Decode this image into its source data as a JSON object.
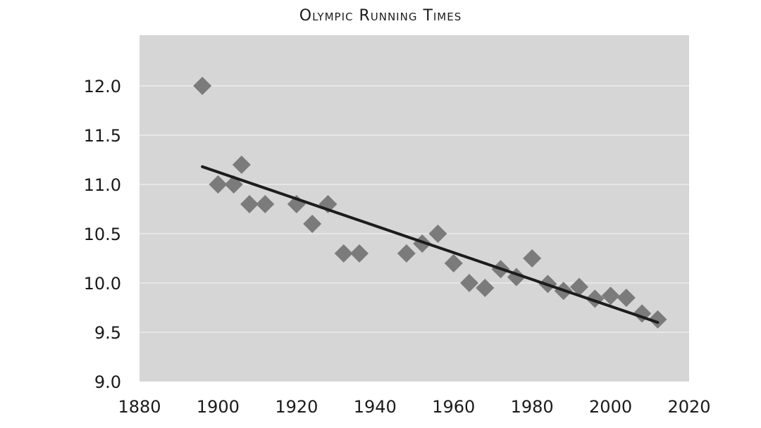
{
  "chart_data": {
    "type": "scatter",
    "title": "Olympic Running Times",
    "xlabel": "",
    "ylabel": "",
    "xlim": [
      1880,
      2020
    ],
    "ylim": [
      9.0,
      12.5
    ],
    "x_ticks": [
      "1880",
      "1900",
      "1920",
      "1940",
      "1960",
      "1980",
      "2000",
      "2020"
    ],
    "y_ticks": [
      "9.0",
      "9.5",
      "10.0",
      "10.5",
      "11.0",
      "11.5",
      "12.0"
    ],
    "grid": "horizontal",
    "legend": "none",
    "colors": {
      "plot_background": "#d6d6d6",
      "points": "#7b7b7b",
      "trend_line": "#1c1c1c",
      "grid": "#e6e6e6"
    },
    "points": [
      {
        "x": 1896,
        "y": 12.0
      },
      {
        "x": 1900,
        "y": 11.0
      },
      {
        "x": 1904,
        "y": 11.0
      },
      {
        "x": 1906,
        "y": 11.2
      },
      {
        "x": 1908,
        "y": 10.8
      },
      {
        "x": 1912,
        "y": 10.8
      },
      {
        "x": 1920,
        "y": 10.8
      },
      {
        "x": 1924,
        "y": 10.6
      },
      {
        "x": 1928,
        "y": 10.8
      },
      {
        "x": 1932,
        "y": 10.3
      },
      {
        "x": 1936,
        "y": 10.3
      },
      {
        "x": 1948,
        "y": 10.3
      },
      {
        "x": 1952,
        "y": 10.4
      },
      {
        "x": 1956,
        "y": 10.5
      },
      {
        "x": 1960,
        "y": 10.2
      },
      {
        "x": 1964,
        "y": 10.0
      },
      {
        "x": 1968,
        "y": 9.95
      },
      {
        "x": 1972,
        "y": 10.14
      },
      {
        "x": 1976,
        "y": 10.06
      },
      {
        "x": 1980,
        "y": 10.25
      },
      {
        "x": 1984,
        "y": 9.99
      },
      {
        "x": 1988,
        "y": 9.92
      },
      {
        "x": 1992,
        "y": 9.96
      },
      {
        "x": 1996,
        "y": 9.84
      },
      {
        "x": 2000,
        "y": 9.87
      },
      {
        "x": 2004,
        "y": 9.85
      },
      {
        "x": 2008,
        "y": 9.69
      },
      {
        "x": 2012,
        "y": 9.63
      }
    ],
    "trend_line": {
      "x": [
        1896,
        2012
      ],
      "y": [
        11.18,
        9.6
      ]
    }
  }
}
